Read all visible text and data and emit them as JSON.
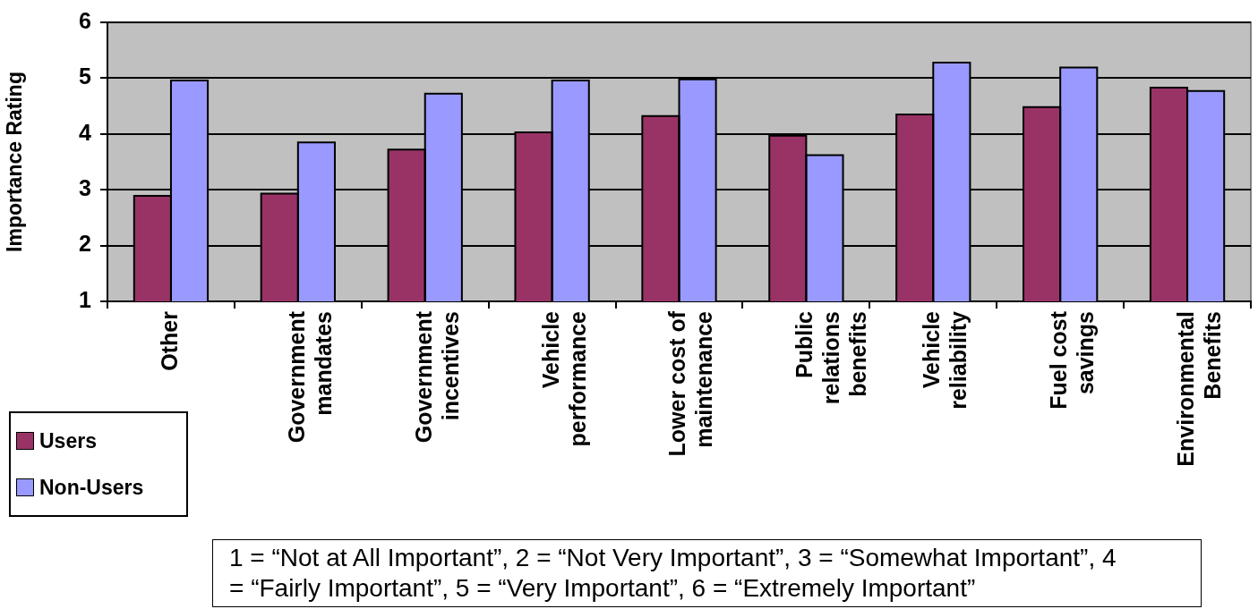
{
  "chart_data": {
    "type": "bar",
    "ylabel": "Importance Rating",
    "categories": [
      "Other",
      "Government\nmandates",
      "Government\nincentives",
      "Vehicle\nperformance",
      "Lower cost of\nmaintenance",
      "Public\nrelations\nbenefits",
      "Vehicle\nreliability",
      "Fuel cost\nsavings",
      "Environmental\nBenefits"
    ],
    "series": [
      {
        "name": "Users",
        "color": "#993366",
        "values": [
          2.89,
          2.93,
          3.72,
          4.03,
          4.32,
          3.97,
          4.35,
          4.48,
          4.83
        ]
      },
      {
        "name": "Non-Users",
        "color": "#9999ff",
        "values": [
          4.96,
          3.85,
          4.72,
          4.96,
          4.98,
          3.62,
          5.28,
          5.19,
          4.77
        ]
      }
    ],
    "ylim": [
      1,
      6
    ],
    "yticks": [
      1,
      2,
      3,
      4,
      5,
      6
    ],
    "grid": "y",
    "legend": "bottom left",
    "annotations": [
      "1 = “Not at All Important”, 2 = “Not Very Important”, 3 = “Somewhat Important”, 4 = “Fairly Important”, 5 = “Very Important”, 6 = “Extremely Important”"
    ]
  }
}
